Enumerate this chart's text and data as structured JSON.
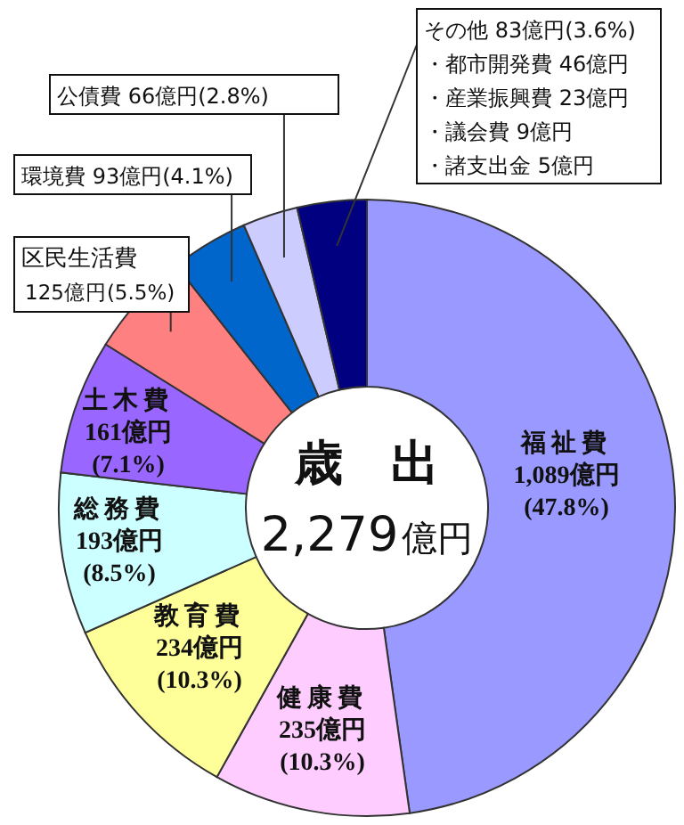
{
  "chart_data": {
    "type": "donut",
    "title": "歳　出",
    "categories": [
      "福祉費",
      "健康費",
      "教育費",
      "総務費",
      "土木費",
      "区民生活費",
      "環境費",
      "公債費",
      "その他"
    ],
    "values": [
      1089,
      235,
      234,
      193,
      161,
      125,
      93,
      66,
      83
    ],
    "value_labels": [
      "1,089億円 (47.8%)",
      "235億円 (10.3%)",
      "234億円 (10.3%)",
      "193億円 (8.5%)",
      "161億円 (7.1%)",
      "125億円(5.5%)",
      "93億円(4.1%)",
      "66億円(2.8%)",
      "83億円(3.6%)"
    ],
    "colors": [
      "#9999ff",
      "#ffccff",
      "#ffff99",
      "#ccffff",
      "#9966ff",
      "#ff8080",
      "#0066cc",
      "#ccccff",
      "#000080"
    ],
    "annotations": [
      "2,279億円",
      "・都市開発費 46億円",
      "・産業振興費 23億円",
      "・議会費 9億円",
      "・諸支出金 5億円"
    ]
  }
}
